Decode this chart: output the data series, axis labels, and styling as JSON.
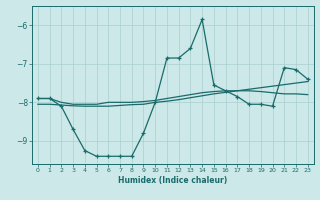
{
  "xlabel": "Humidex (Indice chaleur)",
  "bg_color": "#cce8e8",
  "line_color": "#1a6b6b",
  "grid_color": "#aacfcf",
  "xlim": [
    -0.5,
    23.5
  ],
  "ylim": [
    -9.6,
    -5.5
  ],
  "yticks": [
    -9,
    -8,
    -7,
    -6
  ],
  "xticks": [
    0,
    1,
    2,
    3,
    4,
    5,
    6,
    7,
    8,
    9,
    10,
    11,
    12,
    13,
    14,
    15,
    16,
    17,
    18,
    19,
    20,
    21,
    22,
    23
  ],
  "line_spiky_x": [
    0,
    1,
    2,
    3,
    4,
    5,
    6,
    7,
    8,
    9,
    10,
    11,
    12,
    13,
    14,
    15,
    16,
    17,
    18,
    19,
    20,
    21,
    22,
    23
  ],
  "line_spiky_y": [
    -7.9,
    -7.9,
    -8.1,
    -8.7,
    -9.25,
    -9.4,
    -9.4,
    -9.4,
    -9.4,
    -8.8,
    -8.0,
    -6.85,
    -6.85,
    -6.6,
    -5.85,
    -7.55,
    -7.7,
    -7.85,
    -8.05,
    -8.05,
    -8.1,
    -7.1,
    -7.15,
    -7.4
  ],
  "line_diag_x": [
    0,
    1,
    2,
    3,
    4,
    5,
    6,
    7,
    8,
    9,
    10,
    11,
    12,
    13,
    14,
    15,
    16,
    17,
    18,
    19,
    20,
    21,
    22,
    23
  ],
  "line_diag_y": [
    -8.05,
    -8.05,
    -8.07,
    -8.09,
    -8.1,
    -8.1,
    -8.1,
    -8.08,
    -8.06,
    -8.05,
    -8.0,
    -7.97,
    -7.93,
    -7.88,
    -7.83,
    -7.78,
    -7.74,
    -7.7,
    -7.66,
    -7.62,
    -7.58,
    -7.54,
    -7.5,
    -7.46
  ],
  "line_flat_x": [
    0,
    1,
    2,
    3,
    4,
    5,
    6,
    7,
    8,
    9,
    10,
    11,
    12,
    13,
    14,
    15,
    16,
    17,
    18,
    19,
    20,
    21,
    22,
    23
  ],
  "line_flat_y": [
    -7.9,
    -7.9,
    -8.0,
    -8.05,
    -8.05,
    -8.05,
    -8.0,
    -8.0,
    -8.0,
    -7.98,
    -7.95,
    -7.9,
    -7.85,
    -7.8,
    -7.75,
    -7.72,
    -7.7,
    -7.7,
    -7.7,
    -7.72,
    -7.75,
    -7.78,
    -7.78,
    -7.8
  ]
}
